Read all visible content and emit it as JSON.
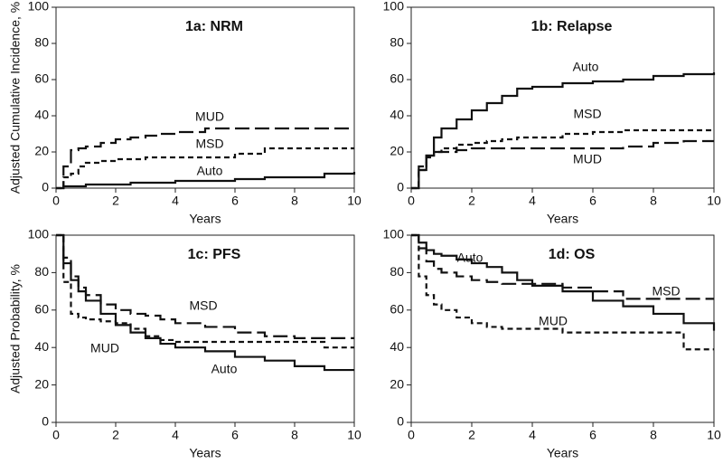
{
  "chart_data": [
    {
      "type": "line",
      "step": true,
      "title": "1a: NRM",
      "ylabel": "Adjusted Cumulative Incidence, %",
      "xlabel": "Years",
      "x": [
        0,
        0.25,
        0.5,
        0.75,
        1,
        1.5,
        2,
        2.5,
        3,
        3.5,
        4,
        5,
        6,
        7,
        8,
        9,
        10
      ],
      "xlim": [
        0,
        10
      ],
      "xticks": [
        0,
        2,
        4,
        6,
        8,
        10
      ],
      "ylim": [
        0,
        100
      ],
      "yticks": [
        0,
        20,
        40,
        60,
        80,
        100
      ],
      "series": [
        {
          "name": "MUD",
          "color": "#111",
          "dash": "long",
          "values": [
            0,
            12,
            21,
            22,
            23,
            25,
            27,
            28,
            29,
            30,
            31,
            33,
            33,
            33,
            33,
            33,
            33
          ]
        },
        {
          "name": "MSD",
          "color": "#111",
          "dash": "short",
          "values": [
            0,
            6,
            8,
            12,
            14,
            15,
            16,
            16,
            17,
            17,
            17,
            17,
            19,
            22,
            22,
            22,
            22
          ]
        },
        {
          "name": "Auto",
          "color": "#111",
          "dash": "solid",
          "values": [
            0,
            1,
            1,
            1,
            2,
            2,
            2,
            3,
            3,
            3,
            4,
            4,
            5,
            6,
            6,
            8,
            9
          ]
        }
      ]
    },
    {
      "type": "line",
      "step": true,
      "title": "1b: Relapse",
      "xlabel": "Years",
      "x": [
        0,
        0.25,
        0.5,
        0.75,
        1,
        1.5,
        2,
        2.5,
        3,
        3.5,
        4,
        5,
        6,
        7,
        8,
        9,
        10
      ],
      "xlim": [
        0,
        10
      ],
      "xticks": [
        0,
        2,
        4,
        6,
        8,
        10
      ],
      "ylim": [
        0,
        100
      ],
      "yticks": [
        0,
        20,
        40,
        60,
        80,
        100
      ],
      "series": [
        {
          "name": "Auto",
          "color": "#111",
          "dash": "solid",
          "values": [
            0,
            10,
            18,
            28,
            33,
            38,
            43,
            47,
            51,
            55,
            56,
            58,
            59,
            60,
            62,
            63,
            64
          ]
        },
        {
          "name": "MSD",
          "color": "#111",
          "dash": "short",
          "values": [
            0,
            10,
            17,
            20,
            22,
            24,
            25,
            26,
            27,
            28,
            28,
            30,
            31,
            32,
            32,
            32,
            32
          ]
        },
        {
          "name": "MUD",
          "color": "#111",
          "dash": "long",
          "values": [
            0,
            12,
            18,
            20,
            20,
            21,
            22,
            22,
            22,
            22,
            22,
            22,
            22,
            23,
            25,
            26,
            26
          ]
        }
      ]
    },
    {
      "type": "line",
      "step": true,
      "title": "1c: PFS",
      "ylabel": "Adjusted Probability, %",
      "xlabel": "Years",
      "x": [
        0,
        0.25,
        0.5,
        0.75,
        1,
        1.5,
        2,
        2.5,
        3,
        3.5,
        4,
        5,
        6,
        7,
        8,
        9,
        10
      ],
      "xlim": [
        0,
        10
      ],
      "xticks": [
        0,
        2,
        4,
        6,
        8,
        10
      ],
      "ylim": [
        0,
        100
      ],
      "yticks": [
        0,
        20,
        40,
        60,
        80,
        100
      ],
      "series": [
        {
          "name": "MSD",
          "color": "#111",
          "dash": "long",
          "values": [
            100,
            88,
            78,
            72,
            68,
            63,
            60,
            58,
            57,
            55,
            53,
            51,
            48,
            46,
            45,
            45,
            45
          ]
        },
        {
          "name": "MUD",
          "color": "#111",
          "dash": "short",
          "values": [
            100,
            75,
            58,
            56,
            55,
            54,
            53,
            50,
            46,
            44,
            43,
            43,
            43,
            43,
            43,
            40,
            40
          ]
        },
        {
          "name": "Auto",
          "color": "#111",
          "dash": "solid",
          "values": [
            100,
            85,
            76,
            70,
            65,
            58,
            52,
            48,
            45,
            42,
            40,
            38,
            35,
            33,
            30,
            28,
            28
          ]
        }
      ]
    },
    {
      "type": "line",
      "step": true,
      "title": "1d: OS",
      "xlabel": "Years",
      "x": [
        0,
        0.25,
        0.5,
        0.75,
        1,
        1.5,
        2,
        2.5,
        3,
        3.5,
        4,
        5,
        6,
        7,
        8,
        9,
        10
      ],
      "xlim": [
        0,
        10
      ],
      "xticks": [
        0,
        2,
        4,
        6,
        8,
        10
      ],
      "ylim": [
        0,
        100
      ],
      "yticks": [
        0,
        20,
        40,
        60,
        80,
        100
      ],
      "series": [
        {
          "name": "Auto",
          "color": "#111",
          "dash": "solid",
          "values": [
            100,
            96,
            92,
            90,
            89,
            87,
            85,
            83,
            80,
            76,
            73,
            70,
            65,
            62,
            58,
            53,
            49
          ]
        },
        {
          "name": "MSD",
          "color": "#111",
          "dash": "long",
          "values": [
            100,
            93,
            86,
            82,
            80,
            78,
            76,
            75,
            74,
            74,
            74,
            72,
            70,
            66,
            66,
            66,
            66
          ]
        },
        {
          "name": "MUD",
          "color": "#111",
          "dash": "short",
          "values": [
            100,
            78,
            68,
            63,
            60,
            56,
            53,
            51,
            50,
            50,
            50,
            48,
            48,
            48,
            48,
            39,
            39
          ]
        }
      ]
    }
  ]
}
